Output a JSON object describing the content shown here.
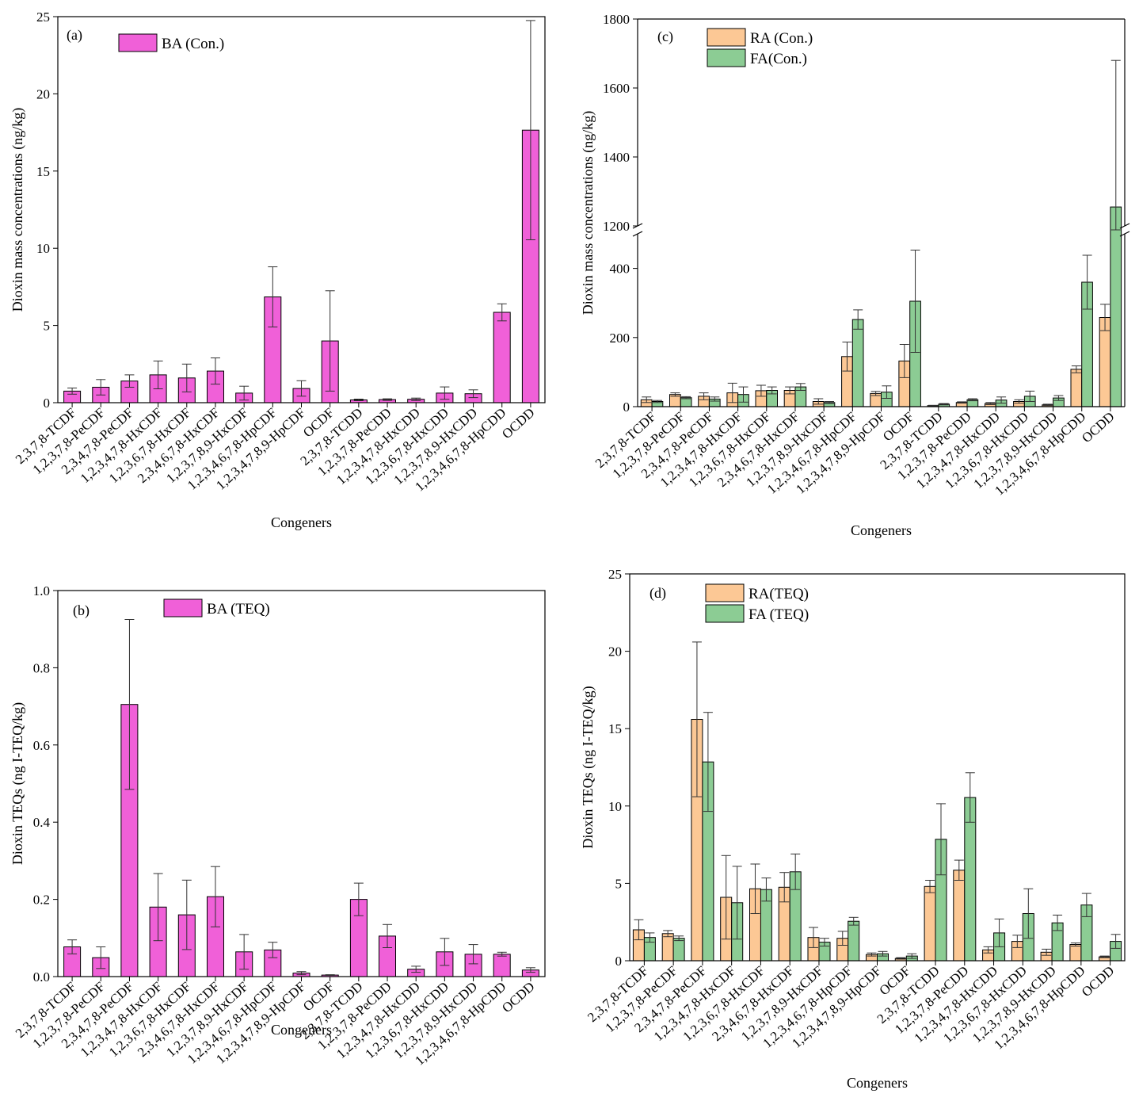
{
  "colors": {
    "pink": "#f060d8",
    "orange": "#fcc895",
    "green": "#8ccc94",
    "axis": "#000000"
  },
  "chart_data": [
    {
      "id": "a",
      "type": "bar",
      "panel_label": "(a)",
      "xlabel": "Congeners",
      "ylabel": "Dioxin mass concentrations (ng/kg)",
      "ylim": [
        0,
        25
      ],
      "yticks": [
        0,
        5,
        10,
        15,
        20,
        25
      ],
      "ytick_labels": [
        "0",
        "5",
        "10",
        "15",
        "20",
        "25"
      ],
      "categories": [
        "2,3,7,8-TCDF",
        "1,2,3,7,8-PeCDF",
        "2,3,4,7,8-PeCDF",
        "1,2,3,4,7,8-HxCDF",
        "1,2,3,6,7,8-HxCDF",
        "2,3,4,6,7,8-HxCDF",
        "1,2,3,7,8,9-HxCDF",
        "1,2,3,4,6,7,8-HpCDF",
        "1,2,3,4,7,8,9-HpCDF",
        "OCDF",
        "2,3,7,8-TCDD",
        "1,2,3,7,8-PeCDD",
        "1,2,3,4,7,8-HxCDD",
        "1,2,3,6,7,8-HxCDD",
        "1,2,3,7,8,9-HxCDD",
        "1,2,3,4,6,7,8-HpCDD",
        "OCDD"
      ],
      "series": [
        {
          "name": "BA (Con.)",
          "color": "#f060d8",
          "values": [
            0.75,
            1.0,
            1.4,
            1.8,
            1.6,
            2.05,
            0.62,
            6.85,
            0.92,
            4.0,
            0.18,
            0.2,
            0.22,
            0.62,
            0.58,
            5.85,
            17.65
          ],
          "errors": [
            0.2,
            0.5,
            0.4,
            0.9,
            0.9,
            0.85,
            0.45,
            1.95,
            0.5,
            3.25,
            0.05,
            0.05,
            0.08,
            0.4,
            0.25,
            0.55,
            7.1
          ]
        }
      ],
      "legend": "top-left"
    },
    {
      "id": "b",
      "type": "bar",
      "panel_label": "(b)",
      "xlabel": "Congeners",
      "ylabel": "Dioxin TEQs (ng I-TEQ/kg)",
      "ylim": [
        0,
        1.0
      ],
      "yticks": [
        0,
        0.2,
        0.4,
        0.6,
        0.8,
        1.0
      ],
      "ytick_labels": [
        "0.0",
        "0.2",
        "0.4",
        "0.6",
        "0.8",
        "1.0"
      ],
      "categories": [
        "2,3,7,8-TCDF",
        "1,2,3,7,8-PeCDF",
        "2,3,4,7,8-PeCDF",
        "1,2,3,4,7,8-HxCDF",
        "1,2,3,6,7,8-HxCDF",
        "2,3,4,6,7,8-HxCDF",
        "1,2,3,7,8,9-HxCDF",
        "1,2,3,4,6,7,8-HpCDF",
        "1,2,3,4,7,8,9-HpCDF",
        "OCDF",
        "2,3,7,8-TCDD",
        "1,2,3,7,8-PeCDD",
        "1,2,3,4,7,8-HxCDD",
        "1,2,3,6,7,8-HxCDD",
        "1,2,3,7,8,9-HxCDD",
        "1,2,3,4,6,7,8-HpCDD",
        "OCDD"
      ],
      "series": [
        {
          "name": "BA (TEQ)",
          "color": "#f060d8",
          "values": [
            0.077,
            0.049,
            0.705,
            0.18,
            0.16,
            0.207,
            0.064,
            0.069,
            0.009,
            0.004,
            0.2,
            0.105,
            0.019,
            0.064,
            0.058,
            0.058,
            0.017
          ],
          "errors": [
            0.018,
            0.028,
            0.22,
            0.087,
            0.09,
            0.078,
            0.045,
            0.02,
            0.004,
            0.001,
            0.042,
            0.03,
            0.008,
            0.035,
            0.025,
            0.005,
            0.006
          ]
        }
      ],
      "legend": "top-left"
    },
    {
      "id": "c",
      "type": "bar",
      "panel_label": "(c)",
      "xlabel": "Congeners",
      "ylabel": "Dioxin mass concentrations (ng/kg)",
      "ylim": [
        0,
        1800
      ],
      "axis_break": [
        500,
        1200
      ],
      "yticks": [
        0,
        200,
        400,
        1200,
        1400,
        1600,
        1800
      ],
      "ytick_labels": [
        "0",
        "200",
        "400",
        "1200",
        "1400",
        "1600",
        "1800"
      ],
      "categories": [
        "2,3,7,8-TCDF",
        "1,2,3,7,8-PeCDF",
        "2,3,4,7,8-PeCDF",
        "1,2,3,4,7,8-HxCDF",
        "1,2,3,6,7,8-HxCDF",
        "2,3,4,6,7,8-HxCDF",
        "1,2,3,7,8,9-HxCDF",
        "1,2,3,4,6,7,8-HpCDF",
        "1,2,3,4,7,8,9-HpCDF",
        "OCDF",
        "2,3,7,8-TCDD",
        "1,2,3,7,8-PeCDD",
        "1,2,3,4,7,8-HxCDD",
        "1,2,3,6,7,8-HxCDD",
        "1,2,3,7,8,9-HxCDD",
        "1,2,3,4,6,7,8-HpCDD",
        "OCDD"
      ],
      "series": [
        {
          "name": "RA (Con.)",
          "color": "#fcc895",
          "values": [
            20,
            35,
            30,
            40,
            46,
            47,
            15,
            145,
            38,
            132,
            3,
            12,
            9,
            15,
            5,
            108,
            258
          ],
          "errors": [
            8,
            5,
            10,
            28,
            16,
            10,
            8,
            42,
            6,
            48,
            1,
            2,
            3,
            5,
            2,
            10,
            38
          ]
        },
        {
          "name": "FA(Con.)",
          "color": "#8ccc94",
          "values": [
            15,
            26,
            22,
            35,
            47,
            57,
            12,
            252,
            42,
            305,
            7,
            20,
            19,
            30,
            25,
            360,
            1255
          ],
          "errors": [
            3,
            3,
            6,
            22,
            10,
            10,
            3,
            28,
            18,
            148,
            2,
            3,
            9,
            15,
            7,
            78,
            425
          ]
        }
      ],
      "legend": "top-left"
    },
    {
      "id": "d",
      "type": "bar",
      "panel_label": "(d)",
      "xlabel": "Congeners",
      "ylabel": "Dioxin TEQs (ng I-TEQ/kg)",
      "ylim": [
        0,
        25
      ],
      "yticks": [
        0,
        5,
        10,
        15,
        20,
        25
      ],
      "ytick_labels": [
        "0",
        "5",
        "10",
        "15",
        "20",
        "25"
      ],
      "categories": [
        "2,3,7,8-TCDF",
        "1,2,3,7,8-PeCDF",
        "2,3,4,7,8-PeCDF",
        "1,2,3,4,7,8-HxCDF",
        "1,2,3,6,7,8-HxCDF",
        "2,3,4,6,7,8-HxCDF",
        "1,2,3,7,8,9-HxCDF",
        "1,2,3,4,6,7,8-HpCDF",
        "1,2,3,4,7,8,9-HpCDF",
        "OCDF",
        "2,3,7,8-TCDD",
        "1,2,3,7,8-PeCDD",
        "1,2,3,4,7,8-HxCDD",
        "1,2,3,6,7,8-HxCDD",
        "1,2,3,7,8,9-HxCDD",
        "1,2,3,4,6,7,8-HpCDD",
        "OCDD"
      ],
      "series": [
        {
          "name": "RA(TEQ)",
          "color": "#fcc895",
          "values": [
            2.0,
            1.75,
            15.6,
            4.1,
            4.65,
            4.75,
            1.5,
            1.45,
            0.4,
            0.15,
            4.8,
            5.85,
            0.7,
            1.25,
            0.55,
            1.05,
            0.25
          ],
          "errors": [
            0.65,
            0.2,
            5.0,
            2.7,
            1.6,
            0.95,
            0.65,
            0.45,
            0.1,
            0.05,
            0.4,
            0.65,
            0.2,
            0.4,
            0.2,
            0.1,
            0.05
          ]
        },
        {
          "name": "FA (TEQ)",
          "color": "#8ccc94",
          "values": [
            1.5,
            1.45,
            12.85,
            3.75,
            4.6,
            5.75,
            1.2,
            2.55,
            0.45,
            0.3,
            7.85,
            10.55,
            1.8,
            3.05,
            2.45,
            3.6,
            1.25
          ],
          "errors": [
            0.3,
            0.15,
            3.2,
            2.35,
            0.75,
            1.15,
            0.25,
            0.25,
            0.15,
            0.15,
            2.3,
            1.6,
            0.9,
            1.6,
            0.5,
            0.75,
            0.45
          ]
        }
      ],
      "legend": "top-left"
    }
  ]
}
